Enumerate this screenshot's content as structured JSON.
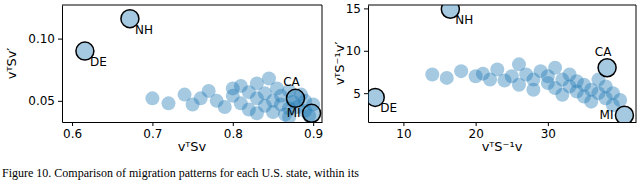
{
  "chart_data": [
    {
      "type": "scatter",
      "x_label": "vᵀSv",
      "y_label": "vᵀSv′",
      "color": "#1f77b4",
      "marker": "circle",
      "xlim": [
        0.5875,
        0.911
      ],
      "ylim": [
        0.033,
        0.127
      ],
      "xticks": [
        0.6,
        0.7,
        0.8,
        0.9
      ],
      "yticks": [
        0.05,
        {
          "value": 0.1,
          "label": "0.10"
        }
      ],
      "x": [
        0.672,
        0.616,
        0.878,
        0.898,
        0.7,
        0.72,
        0.74,
        0.75,
        0.77,
        0.78,
        0.79,
        0.8,
        0.8,
        0.81,
        0.82,
        0.82,
        0.83,
        0.83,
        0.84,
        0.84,
        0.85,
        0.85,
        0.855,
        0.86,
        0.86,
        0.865,
        0.87,
        0.87,
        0.875,
        0.88,
        0.885,
        0.89,
        0.89,
        0.895,
        0.9,
        0.845,
        0.81,
        0.76,
        0.87,
        0.83
      ],
      "values": [
        0.116,
        0.09,
        0.052,
        0.04,
        0.052,
        0.048,
        0.055,
        0.047,
        0.058,
        0.05,
        0.045,
        0.054,
        0.06,
        0.048,
        0.057,
        0.043,
        0.052,
        0.064,
        0.046,
        0.056,
        0.05,
        0.041,
        0.06,
        0.047,
        0.054,
        0.039,
        0.044,
        0.058,
        0.049,
        0.045,
        0.055,
        0.042,
        0.05,
        0.038,
        0.047,
        0.068,
        0.062,
        0.052,
        0.037,
        0.04
      ],
      "point_labels": [
        "NH",
        "DE",
        "CA",
        "MI",
        null,
        null,
        null,
        null,
        null,
        null,
        null,
        null,
        null,
        null,
        null,
        null,
        null,
        null,
        null,
        null,
        null,
        null,
        null,
        null,
        null,
        null,
        null,
        null,
        null,
        null,
        null,
        null,
        null,
        null,
        null,
        null,
        null,
        null,
        null,
        null
      ]
    },
    {
      "type": "scatter",
      "x_label": "vᵀS⁻¹v",
      "y_label": "vᵀS⁻¹v′",
      "color": "#1f77b4",
      "marker": "circle",
      "xlim": [
        5.1,
        42.2
      ],
      "ylim": [
        1.6,
        15.4
      ],
      "xticks": [
        10,
        20,
        30
      ],
      "yticks": [
        5,
        10,
        15
      ],
      "x": [
        16.5,
        6.1,
        38.2,
        40.6,
        14,
        16,
        18,
        20,
        21,
        22,
        23,
        24,
        25,
        26,
        26,
        27,
        28,
        28,
        29,
        30,
        30,
        31,
        31,
        32,
        32,
        33,
        33,
        34,
        34,
        35,
        35,
        36,
        36,
        37,
        37,
        38,
        38,
        39,
        39,
        40
      ],
      "values": [
        14.9,
        4.5,
        8.0,
        2.4,
        7.2,
        6.8,
        7.6,
        7.0,
        7.3,
        6.6,
        7.8,
        6.5,
        7.0,
        8.4,
        6.0,
        7.2,
        6.6,
        5.4,
        7.6,
        6.2,
        7.0,
        5.6,
        8.0,
        6.6,
        4.8,
        5.8,
        7.2,
        5.2,
        6.4,
        4.6,
        6.0,
        5.4,
        4.0,
        5.0,
        6.6,
        4.4,
        5.8,
        3.6,
        5.0,
        4.2
      ],
      "point_labels": [
        "NH",
        "DE",
        "CA",
        "MI",
        null,
        null,
        null,
        null,
        null,
        null,
        null,
        null,
        null,
        null,
        null,
        null,
        null,
        null,
        null,
        null,
        null,
        null,
        null,
        null,
        null,
        null,
        null,
        null,
        null,
        null,
        null,
        null,
        null,
        null,
        null,
        null,
        null,
        null,
        null,
        null
      ]
    }
  ],
  "caption": "Figure 10. Comparison of migration patterns for each U.S. state, within its"
}
